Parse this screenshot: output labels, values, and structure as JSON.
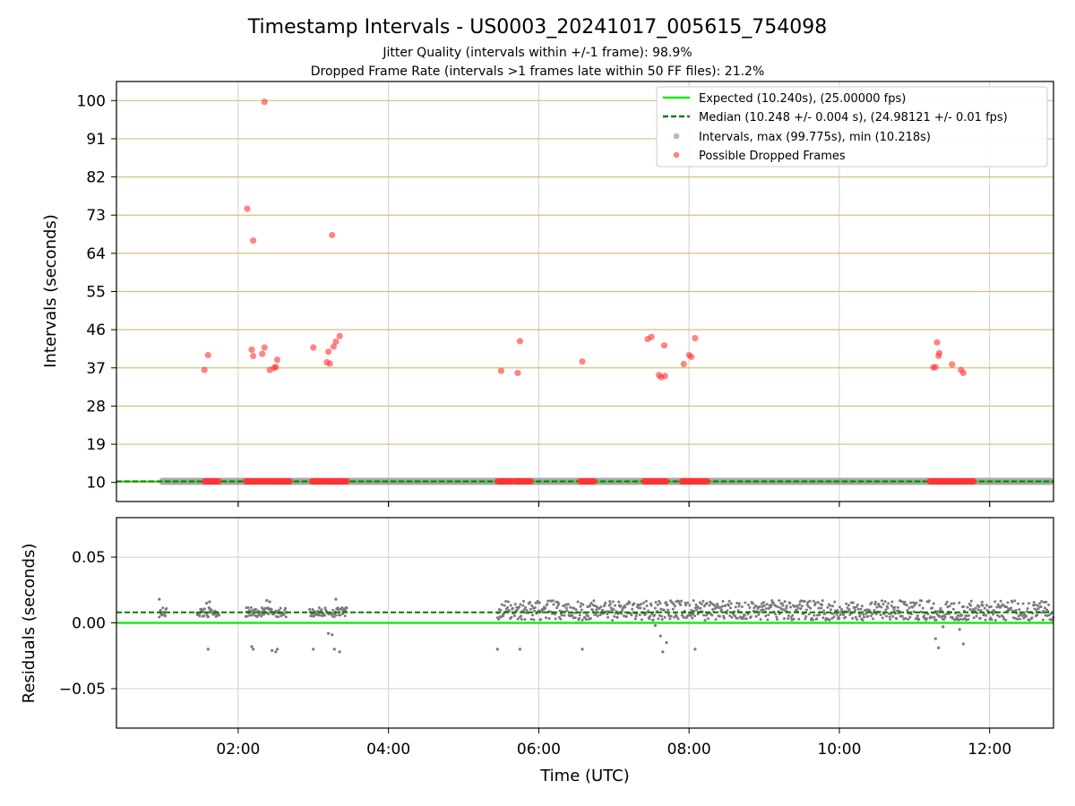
{
  "chart_data": {
    "type": "scatter",
    "title": "Timestamp Intervals - US0003_20241017_005615_754098",
    "subtitles": [
      "Jitter Quality (intervals within +/-1 frame): 98.9%",
      "Dropped Frame Rate (intervals >1 frames late within 50 FF files): 21.2%"
    ],
    "xlabel": "Time (UTC)",
    "x_ticks": [
      "02:00",
      "04:00",
      "06:00",
      "08:00",
      "10:00",
      "12:00"
    ],
    "x_tick_hours": [
      2,
      4,
      6,
      8,
      10,
      12
    ],
    "xlim_hours": [
      0.38,
      12.85
    ],
    "top_panel": {
      "ylabel": "Intervals (seconds)",
      "ylim": [
        5.5,
        104.5
      ],
      "y_ticks": [
        10,
        19,
        28,
        37,
        46,
        55,
        64,
        73,
        82,
        91,
        100
      ],
      "grid": true,
      "legend": {
        "placement": "top-right",
        "entries": [
          {
            "label": "Expected (10.240s), (25.00000 fps)",
            "style": "line",
            "color": "#1ee81e"
          },
          {
            "label": "Median (10.248 +/- 0.004 s), (24.98121 +/- 0.01 fps)",
            "style": "dashed",
            "color": "#0a7a0a"
          },
          {
            "label": "Intervals, max (99.775s), min (10.218s)",
            "style": "dot",
            "color": "#8c8c8c"
          },
          {
            "label": "Possible Dropped Frames",
            "style": "dot",
            "color": "#ff3333"
          }
        ]
      },
      "expected_interval": 10.24,
      "median_interval": 10.248,
      "intervals_hours_range": [
        0.95,
        12.85
      ],
      "dropped_frames": [
        [
          1.55,
          36.5
        ],
        [
          1.6,
          40.0
        ],
        [
          2.12,
          74.5
        ],
        [
          2.2,
          67.0
        ],
        [
          2.18,
          41.3
        ],
        [
          2.2,
          39.8
        ],
        [
          2.32,
          40.3
        ],
        [
          2.35,
          41.8
        ],
        [
          2.35,
          99.7
        ],
        [
          2.42,
          36.5
        ],
        [
          2.48,
          37.0
        ],
        [
          2.5,
          37.2
        ],
        [
          2.52,
          38.9
        ],
        [
          3.0,
          41.8
        ],
        [
          3.18,
          38.3
        ],
        [
          3.22,
          38.0
        ],
        [
          3.2,
          40.8
        ],
        [
          3.25,
          68.3
        ],
        [
          3.27,
          42.0
        ],
        [
          3.3,
          43.2
        ],
        [
          3.35,
          44.5
        ],
        [
          5.5,
          36.3
        ],
        [
          5.72,
          35.8
        ],
        [
          5.75,
          43.3
        ],
        [
          6.58,
          38.5
        ],
        [
          7.45,
          43.8
        ],
        [
          7.5,
          44.3
        ],
        [
          7.6,
          35.3
        ],
        [
          7.63,
          34.8
        ],
        [
          7.68,
          35.1
        ],
        [
          7.67,
          42.3
        ],
        [
          7.93,
          37.9
        ],
        [
          8.0,
          40.0
        ],
        [
          8.03,
          39.6
        ],
        [
          8.08,
          44.0
        ],
        [
          11.25,
          37.1
        ],
        [
          11.28,
          37.2
        ],
        [
          11.3,
          43.0
        ],
        [
          11.32,
          39.8
        ],
        [
          11.33,
          40.5
        ],
        [
          11.5,
          37.8
        ],
        [
          11.62,
          36.5
        ],
        [
          11.65,
          35.8
        ]
      ],
      "dropped_base_clusters": [
        [
          1.55,
          1.75
        ],
        [
          2.1,
          2.7
        ],
        [
          2.98,
          3.45
        ],
        [
          5.45,
          5.65
        ],
        [
          5.68,
          5.9
        ],
        [
          6.55,
          6.75
        ],
        [
          7.4,
          7.7
        ],
        [
          7.9,
          8.25
        ],
        [
          11.2,
          11.8
        ]
      ]
    },
    "bottom_panel": {
      "ylabel": "Residuals (seconds)",
      "ylim": [
        -0.08,
        0.08
      ],
      "y_ticks": [
        0.05,
        0.0,
        -0.05
      ],
      "y_tick_labels": [
        "0.05",
        "0.00",
        "−0.05"
      ],
      "grid": true,
      "expected_residual": 0.0,
      "median_residual": 0.008,
      "residual_outliers": [
        [
          0.95,
          0.018
        ],
        [
          1.58,
          0.015
        ],
        [
          1.62,
          0.016
        ],
        [
          1.6,
          -0.02
        ],
        [
          2.18,
          -0.018
        ],
        [
          2.2,
          -0.02
        ],
        [
          2.38,
          0.017
        ],
        [
          2.42,
          0.016
        ],
        [
          2.45,
          -0.021
        ],
        [
          2.5,
          -0.022
        ],
        [
          2.52,
          -0.02
        ],
        [
          3.0,
          -0.02
        ],
        [
          3.2,
          -0.008
        ],
        [
          3.25,
          -0.009
        ],
        [
          3.3,
          0.018
        ],
        [
          3.28,
          -0.02
        ],
        [
          3.35,
          -0.022
        ],
        [
          5.45,
          -0.02
        ],
        [
          5.75,
          -0.02
        ],
        [
          6.58,
          -0.02
        ],
        [
          7.55,
          -0.002
        ],
        [
          7.62,
          -0.01
        ],
        [
          7.65,
          -0.022
        ],
        [
          7.7,
          -0.015
        ],
        [
          8.08,
          -0.02
        ],
        [
          11.28,
          -0.012
        ],
        [
          11.32,
          -0.019
        ],
        [
          11.38,
          -0.003
        ],
        [
          11.6,
          -0.005
        ],
        [
          11.65,
          -0.016
        ]
      ],
      "early_residual_range": [
        0.0,
        0.012
      ],
      "late_residual_range": [
        0.0,
        0.018
      ],
      "late_start_hours": 5.45
    }
  }
}
